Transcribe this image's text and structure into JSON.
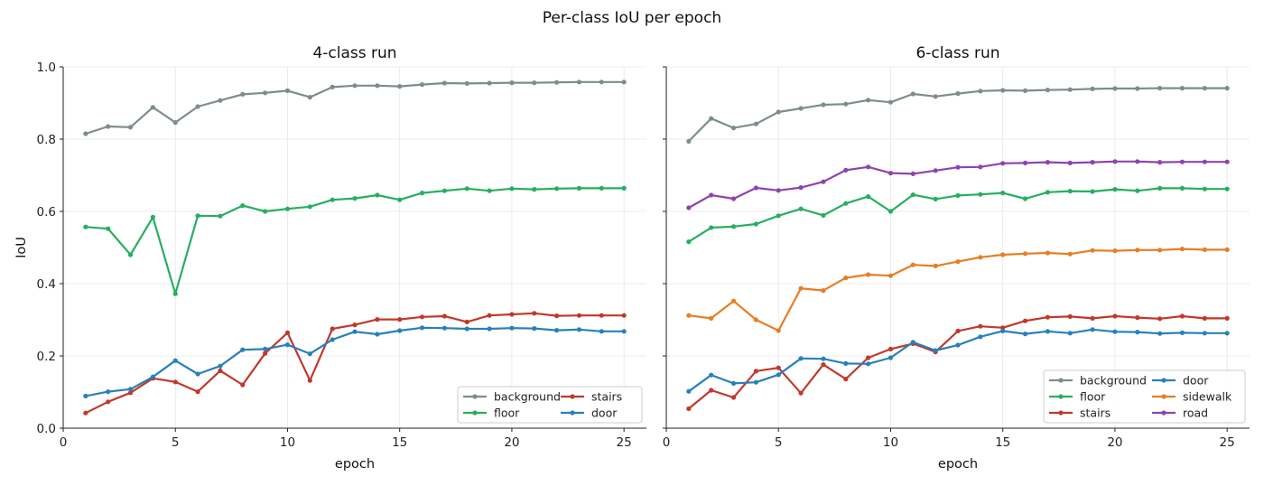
{
  "suptitle": "Per-class IoU per epoch",
  "chart_data": [
    {
      "type": "line",
      "title": "4-class run",
      "xlabel": "epoch",
      "ylabel": "IoU",
      "xlim": [
        0,
        26
      ],
      "ylim": [
        0,
        1.0
      ],
      "xticks": [
        0,
        5,
        10,
        15,
        20,
        25
      ],
      "yticks": [
        0.0,
        0.2,
        0.4,
        0.6,
        0.8,
        1.0
      ],
      "grid": true,
      "legend_position": "bottom-right",
      "legend_columns": 2,
      "x": [
        1,
        2,
        3,
        4,
        5,
        6,
        7,
        8,
        9,
        10,
        11,
        12,
        13,
        14,
        15,
        16,
        17,
        18,
        19,
        20,
        21,
        22,
        23,
        24,
        25
      ],
      "series": [
        {
          "name": "background",
          "color": "#7f8c8d",
          "values": [
            0.815,
            0.835,
            0.833,
            0.888,
            0.846,
            0.89,
            0.907,
            0.924,
            0.928,
            0.934,
            0.916,
            0.944,
            0.948,
            0.948,
            0.946,
            0.951,
            0.955,
            0.954,
            0.955,
            0.956,
            0.956,
            0.957,
            0.958,
            0.958,
            0.958
          ]
        },
        {
          "name": "floor",
          "color": "#27ae60",
          "values": [
            0.557,
            0.552,
            0.48,
            0.584,
            0.372,
            0.588,
            0.587,
            0.616,
            0.6,
            0.607,
            0.613,
            0.632,
            0.636,
            0.645,
            0.632,
            0.651,
            0.657,
            0.663,
            0.657,
            0.663,
            0.661,
            0.663,
            0.664,
            0.664,
            0.664
          ]
        },
        {
          "name": "stairs",
          "color": "#c0392b",
          "values": [
            0.042,
            0.073,
            0.098,
            0.138,
            0.128,
            0.101,
            0.159,
            0.12,
            0.207,
            0.264,
            0.132,
            0.275,
            0.286,
            0.301,
            0.301,
            0.308,
            0.31,
            0.294,
            0.312,
            0.315,
            0.318,
            0.311,
            0.312,
            0.312,
            0.312
          ]
        },
        {
          "name": "door",
          "color": "#2980b9",
          "values": [
            0.089,
            0.101,
            0.108,
            0.142,
            0.187,
            0.15,
            0.172,
            0.217,
            0.219,
            0.231,
            0.206,
            0.245,
            0.267,
            0.26,
            0.27,
            0.278,
            0.277,
            0.275,
            0.275,
            0.277,
            0.276,
            0.271,
            0.273,
            0.268,
            0.268
          ]
        }
      ]
    },
    {
      "type": "line",
      "title": "6-class run",
      "xlabel": "epoch",
      "ylabel": "",
      "xlim": [
        0,
        26
      ],
      "ylim": [
        0,
        1.0
      ],
      "xticks": [
        0,
        5,
        10,
        15,
        20,
        25
      ],
      "yticks": [
        0.0,
        0.2,
        0.4,
        0.6,
        0.8,
        1.0
      ],
      "shared_y": true,
      "grid": true,
      "legend_position": "bottom-right",
      "legend_columns": 2,
      "x": [
        1,
        2,
        3,
        4,
        5,
        6,
        7,
        8,
        9,
        10,
        11,
        12,
        13,
        14,
        15,
        16,
        17,
        18,
        19,
        20,
        21,
        22,
        23,
        24,
        25
      ],
      "series": [
        {
          "name": "background",
          "color": "#7f8c8d",
          "values": [
            0.794,
            0.857,
            0.831,
            0.842,
            0.875,
            0.885,
            0.895,
            0.897,
            0.908,
            0.902,
            0.925,
            0.918,
            0.926,
            0.933,
            0.935,
            0.934,
            0.936,
            0.937,
            0.939,
            0.94,
            0.94,
            0.941,
            0.941,
            0.941,
            0.941
          ]
        },
        {
          "name": "floor",
          "color": "#27ae60",
          "values": [
            0.516,
            0.555,
            0.558,
            0.565,
            0.588,
            0.607,
            0.589,
            0.622,
            0.641,
            0.6,
            0.646,
            0.634,
            0.644,
            0.647,
            0.651,
            0.635,
            0.653,
            0.656,
            0.655,
            0.661,
            0.657,
            0.664,
            0.664,
            0.662,
            0.662
          ]
        },
        {
          "name": "stairs",
          "color": "#c0392b",
          "values": [
            0.054,
            0.105,
            0.085,
            0.158,
            0.167,
            0.097,
            0.176,
            0.136,
            0.195,
            0.219,
            0.234,
            0.211,
            0.269,
            0.282,
            0.278,
            0.297,
            0.307,
            0.309,
            0.304,
            0.31,
            0.306,
            0.303,
            0.31,
            0.304,
            0.304
          ]
        },
        {
          "name": "door",
          "color": "#2980b9",
          "values": [
            0.102,
            0.147,
            0.124,
            0.127,
            0.148,
            0.193,
            0.192,
            0.179,
            0.178,
            0.195,
            0.238,
            0.215,
            0.23,
            0.253,
            0.269,
            0.261,
            0.268,
            0.263,
            0.273,
            0.267,
            0.266,
            0.262,
            0.264,
            0.263,
            0.263
          ]
        },
        {
          "name": "sidewalk",
          "color": "#e67e22",
          "values": [
            0.312,
            0.304,
            0.352,
            0.3,
            0.27,
            0.387,
            0.381,
            0.416,
            0.425,
            0.422,
            0.452,
            0.449,
            0.461,
            0.473,
            0.48,
            0.483,
            0.485,
            0.482,
            0.492,
            0.491,
            0.493,
            0.493,
            0.496,
            0.494,
            0.494
          ]
        },
        {
          "name": "road",
          "color": "#8e44ad",
          "values": [
            0.61,
            0.645,
            0.635,
            0.665,
            0.658,
            0.666,
            0.682,
            0.714,
            0.723,
            0.706,
            0.704,
            0.713,
            0.722,
            0.723,
            0.733,
            0.734,
            0.736,
            0.734,
            0.736,
            0.738,
            0.738,
            0.736,
            0.737,
            0.737,
            0.737
          ]
        }
      ]
    }
  ]
}
